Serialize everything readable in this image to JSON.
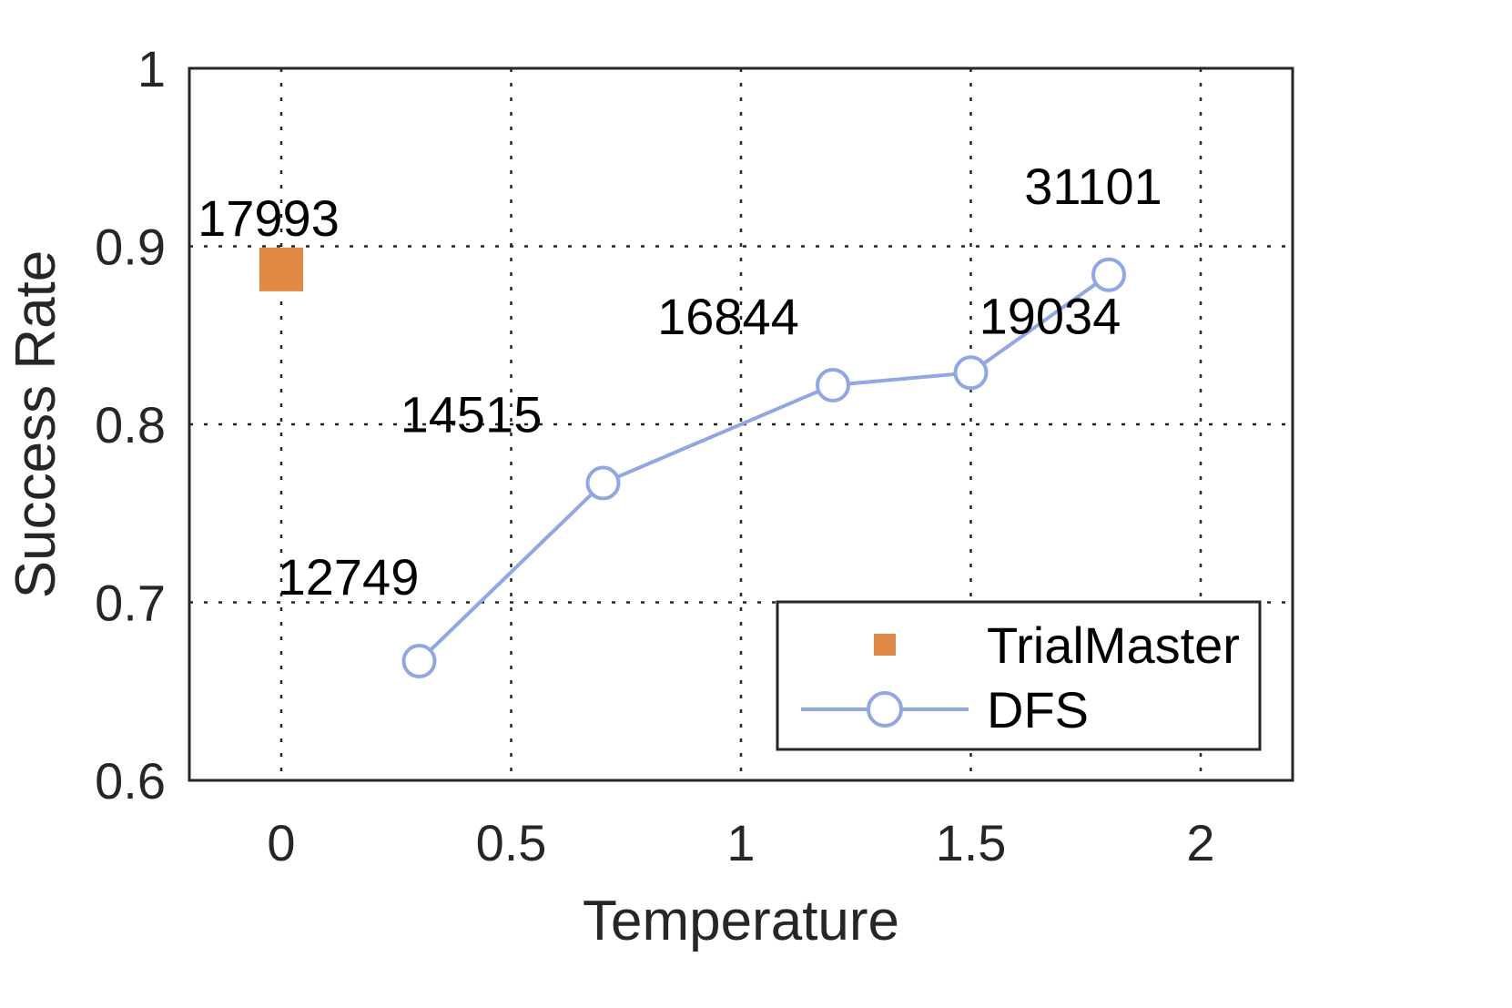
{
  "chart_data": {
    "type": "line",
    "xlabel": "Temperature",
    "ylabel": "Success Rate",
    "xlim": [
      -0.2,
      2.2
    ],
    "ylim": [
      0.6,
      1.0
    ],
    "xticks": [
      0,
      0.5,
      1,
      1.5,
      2
    ],
    "xtick_labels": [
      "0",
      "0.5",
      "1",
      "1.5",
      "2"
    ],
    "yticks": [
      0.6,
      0.7,
      0.8,
      0.9,
      1.0
    ],
    "ytick_labels": [
      "0.6",
      "0.7",
      "0.8",
      "0.9",
      "1"
    ],
    "grid": true,
    "legend_position": "bottom-right",
    "series": [
      {
        "name": "TrialMaster",
        "kind": "marker",
        "marker": "square",
        "color": "#E08A45",
        "x": [
          0
        ],
        "y": [
          0.887
        ],
        "labels": [
          "17993"
        ]
      },
      {
        "name": "DFS",
        "kind": "line",
        "marker": "circle",
        "color": "#8FA6E8",
        "x": [
          0.3,
          0.7,
          1.2,
          1.5,
          1.8
        ],
        "y": [
          0.667,
          0.767,
          0.822,
          0.829,
          0.884
        ],
        "labels": [
          "12749",
          "14515",
          "16844",
          "19034",
          "31101"
        ]
      }
    ]
  }
}
